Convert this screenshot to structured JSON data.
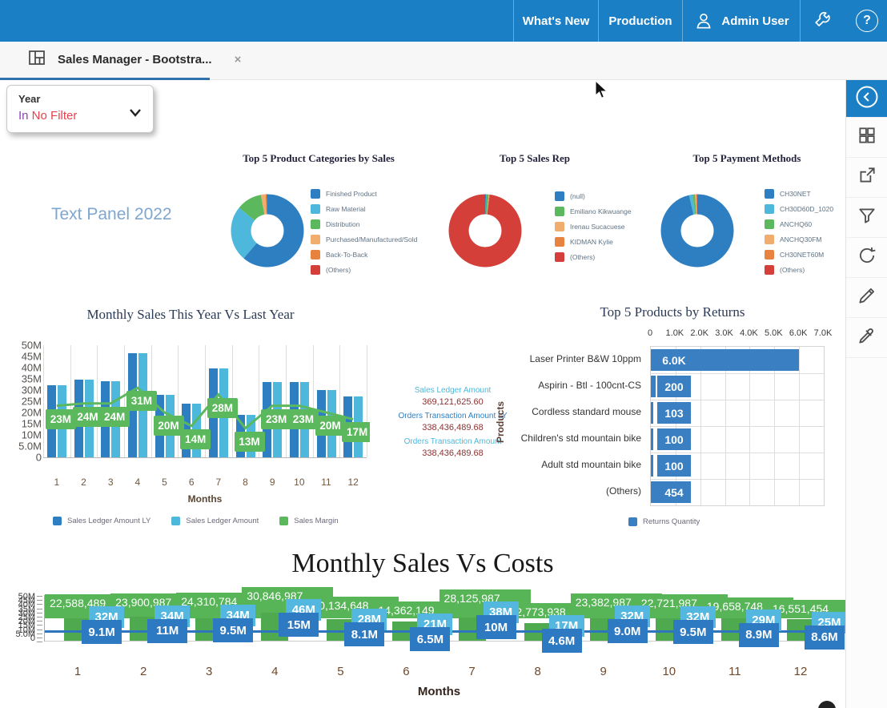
{
  "colors": {
    "header_blue": "#1b7fc5",
    "bar_dark_blue": "#2e7fc2",
    "bar_light_blue": "#4db8dc",
    "green": "#5cb85c",
    "tan": "#f0ad6e",
    "orange": "#e8833f",
    "red": "#d43f3a",
    "chip_light_blue": "#54b7e0",
    "chip_dark_blue": "#2e7ac2",
    "value_maroon": "#8b3232"
  },
  "header": {
    "nav_items": [
      "What's New",
      "Production"
    ],
    "user_label": "Admin User",
    "help_label": "?"
  },
  "tab": {
    "title": "Sales Manager - Bootstra...",
    "close": "×"
  },
  "filter_card": {
    "label": "Year",
    "value_prefix": "In",
    "value_rest": " No Filter"
  },
  "rail": {
    "icons": [
      "collapse-panel",
      "widgets-grid",
      "share",
      "filter",
      "refresh",
      "edit",
      "eyedropper"
    ]
  },
  "text_panel": "Text Panel 2022",
  "donuts": [
    {
      "title": "Top 5 Product Categories by Sales",
      "type": "pie",
      "segments": [
        {
          "label": "Finished Product",
          "color": "#2e7fc2",
          "frac": 0.612
        },
        {
          "label": "Raw Material",
          "color": "#4db8dc",
          "frac": 0.245
        },
        {
          "label": "Distribution",
          "color": "#5cb85c",
          "frac": 0.113
        },
        {
          "label": "Purchased/Manufactured/Sold",
          "color": "#f0ad6e",
          "frac": 0.02
        },
        {
          "label": "Back-To-Back",
          "color": "#e8833f",
          "frac": 0.005
        },
        {
          "label": "(Others)",
          "color": "#d43f3a",
          "frac": 0.005
        }
      ]
    },
    {
      "title": "Top 5 Sales Rep",
      "type": "pie",
      "segments": [
        {
          "label": "(null)",
          "color": "#2e7fc2",
          "frac": 0.004
        },
        {
          "label": "Emiliano Kikwuange",
          "color": "#5cb85c",
          "frac": 0.012
        },
        {
          "label": "Irenau Sucacuese",
          "color": "#f0ad6e",
          "frac": 0.002
        },
        {
          "label": "KIDMAN Kylie",
          "color": "#e8833f",
          "frac": 0.002
        },
        {
          "label": "(Others)",
          "color": "#d43f3a",
          "frac": 0.98
        }
      ]
    },
    {
      "title": "Top 5 Payment Methods",
      "type": "pie",
      "segments": [
        {
          "label": "CH30NET",
          "color": "#2e7fc2",
          "frac": 0.962
        },
        {
          "label": "CH30D60D_1020",
          "color": "#4db8dc",
          "frac": 0.015
        },
        {
          "label": "ANCHQ60",
          "color": "#5cb85c",
          "frac": 0.011
        },
        {
          "label": "ANCHQ30FM",
          "color": "#f0ad6e",
          "frac": 0.005
        },
        {
          "label": "CH30NET60M",
          "color": "#e8833f",
          "frac": 0.004
        },
        {
          "label": "(Others)",
          "color": "#d43f3a",
          "frac": 0.003
        }
      ]
    }
  ],
  "monthly_chart": {
    "type": "bar+line",
    "title": "Monthly Sales This Year Vs Last Year",
    "y_ticks": [
      "50M",
      "45M",
      "40M",
      "35M",
      "30M",
      "25M",
      "20M",
      "15M",
      "10M",
      "5.0M",
      "0"
    ],
    "y_max": 50,
    "x_ticks": [
      "1",
      "2",
      "3",
      "4",
      "5",
      "6",
      "7",
      "8",
      "9",
      "10",
      "11",
      "12"
    ],
    "x_label": "Months",
    "series": [
      {
        "name": "Sales Ledger Amount LY",
        "color": "#2e7fc2",
        "type": "bar",
        "values": [
          32,
          34.5,
          34,
          46.5,
          28,
          24,
          39.5,
          19,
          33.5,
          33.5,
          30,
          27
        ]
      },
      {
        "name": "Sales Ledger Amount",
        "color": "#4db8dc",
        "type": "bar",
        "values": [
          32,
          34.5,
          34,
          46.5,
          28,
          24,
          39.5,
          19,
          33.5,
          33.5,
          30,
          27
        ]
      },
      {
        "name": "Sales Margin",
        "color": "#5cb85c",
        "type": "line",
        "values": [
          23,
          24,
          24,
          31,
          20,
          14,
          28,
          13,
          23,
          23,
          20,
          17
        ],
        "labels": [
          "23M",
          "24M",
          "24M",
          "31M",
          "20M",
          "14M",
          "28M",
          "13M",
          "23M",
          "23M",
          "20M",
          "17M"
        ]
      }
    ]
  },
  "kpi_panel": {
    "items": [
      {
        "label": "Sales Ledger Amount",
        "color": "#4db8dc",
        "value": "369,121,625.60"
      },
      {
        "label": "Orders Transaction Amount LY",
        "color": "#2e7fc2",
        "value": "338,436,489.68"
      },
      {
        "label": "Orders Transaction Amount",
        "color": "#4db8dc",
        "value": "338,436,489.68"
      }
    ]
  },
  "returns_chart": {
    "type": "bar",
    "title": "Top 5 Products by Returns",
    "x_ticks": [
      "0",
      "1.0K",
      "2.0K",
      "3.0K",
      "4.0K",
      "5.0K",
      "6.0K",
      "7.0K"
    ],
    "x_max": 7000,
    "y_label": "Products",
    "legend": "Returns Quantity",
    "bar_color": "#3a7fc1",
    "rows": [
      {
        "label": "Laser Printer B&W 10ppm",
        "value": 6000,
        "value_label": "6.0K"
      },
      {
        "label": "Aspirin - Btl - 100cnt-CS",
        "value": 200,
        "value_label": "200"
      },
      {
        "label": "Cordless standard mouse",
        "value": 103,
        "value_label": "103"
      },
      {
        "label": "Children's std mountain bike",
        "value": 100,
        "value_label": "100"
      },
      {
        "label": "Adult std mountain bike",
        "value": 100,
        "value_label": "100"
      },
      {
        "label": "(Others)",
        "value": 454,
        "value_label": "454"
      }
    ]
  },
  "costs_chart": {
    "type": "bar+line",
    "title": "Monthly Sales Vs Costs",
    "y_ticks": [
      "50M",
      "45M",
      "40M",
      "35M",
      "30M",
      "25M",
      "20M",
      "15M",
      "10M",
      "5.0M",
      "0"
    ],
    "x_ticks": [
      "1",
      "2",
      "3",
      "4",
      "5",
      "6",
      "7",
      "8",
      "9",
      "10",
      "11",
      "12"
    ],
    "x_label": "Months",
    "months": [
      {
        "bar_label": "22,588,489",
        "bar_value": 22.6,
        "sales_label": "32M",
        "sales_value": 32,
        "margin_label": "9.1M",
        "margin_value": 9.1
      },
      {
        "bar_label": "23,900,987",
        "bar_value": 23.9,
        "sales_label": "34M",
        "sales_value": 34,
        "margin_label": "11M",
        "margin_value": 11
      },
      {
        "bar_label": "24,310,784",
        "bar_value": 24.3,
        "sales_label": "34M",
        "sales_value": 34,
        "margin_label": "9.5M",
        "margin_value": 9.5
      },
      {
        "bar_label": "30,846,987",
        "bar_value": 30.8,
        "sales_label": "46M",
        "sales_value": 46,
        "margin_label": "15M",
        "margin_value": 15
      },
      {
        "bar_label": "20,134,648",
        "bar_value": 20.1,
        "sales_label": "28M",
        "sales_value": 28,
        "margin_label": "8.1M",
        "margin_value": 8.1
      },
      {
        "bar_label": "14,362,149",
        "bar_value": 14.4,
        "sales_label": "21M",
        "sales_value": 21,
        "margin_label": "6.5M",
        "margin_value": 6.5
      },
      {
        "bar_label": "28,125,987",
        "bar_value": 28.1,
        "sales_label": "38M",
        "sales_value": 38,
        "margin_label": "10M",
        "margin_value": 10
      },
      {
        "bar_label": "12,773,938",
        "bar_value": 12.8,
        "sales_label": "17M",
        "sales_value": 17,
        "margin_label": "4.6M",
        "margin_value": 4.6
      },
      {
        "bar_label": "23,382,987",
        "bar_value": 23.4,
        "sales_label": "32M",
        "sales_value": 32,
        "margin_label": "9.0M",
        "margin_value": 9.0
      },
      {
        "bar_label": "22,721,987",
        "bar_value": 22.7,
        "sales_label": "32M",
        "sales_value": 32,
        "margin_label": "9.5M",
        "margin_value": 9.5
      },
      {
        "bar_label": "19,658,748",
        "bar_value": 19.7,
        "sales_label": "29M",
        "sales_value": 29,
        "margin_label": "8.9M",
        "margin_value": 8.9
      },
      {
        "bar_label": "16,551,454",
        "bar_value": 16.6,
        "sales_label": "25M",
        "sales_value": 25,
        "margin_label": "8.6M",
        "margin_value": 8.6
      }
    ]
  }
}
